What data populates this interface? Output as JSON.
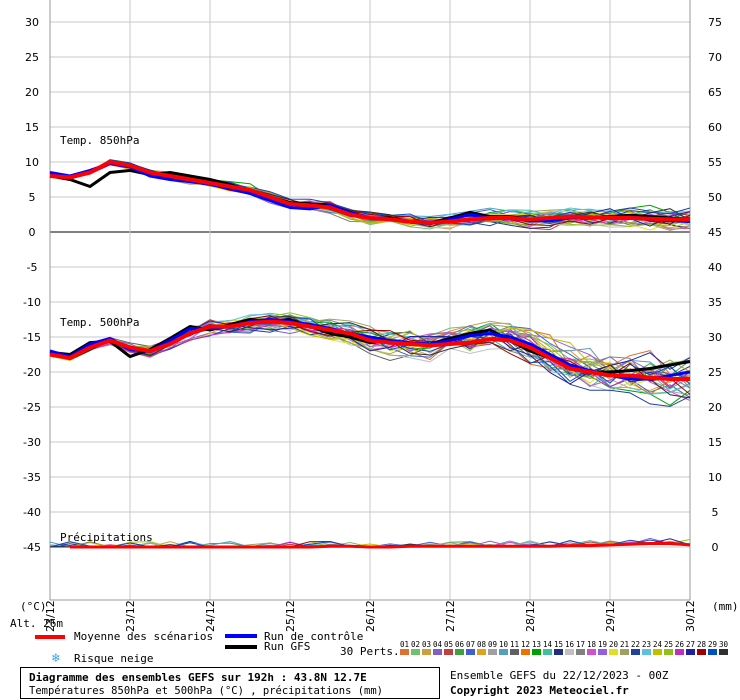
{
  "chart_data": {
    "type": "line",
    "title": "Diagramme des ensembles GEFS sur 192h : 43.8N 12.7E",
    "subtitle": "Températures 850hPa et 500hPa (°C) , précipitations (mm)",
    "x_ticks": [
      "23/12",
      "23/12",
      "24/12",
      "25/12",
      "26/12",
      "27/12",
      "28/12",
      "29/12",
      "30/12"
    ],
    "x": [
      0,
      6,
      12,
      18,
      24,
      30,
      36,
      42,
      48,
      54,
      60,
      66,
      72,
      78,
      84,
      90,
      96,
      102,
      108,
      114,
      120,
      126,
      132,
      138,
      144,
      150,
      156,
      162,
      168,
      174,
      180,
      186,
      192
    ],
    "left_axis": {
      "label": "(°C)",
      "ticks": [
        30,
        25,
        20,
        15,
        10,
        5,
        0,
        -5,
        -10,
        -15,
        -20,
        -25,
        -30,
        -35,
        -40,
        -45
      ],
      "range": [
        -45,
        30
      ]
    },
    "right_axis": {
      "label": "(mm)",
      "ticks": [
        75,
        70,
        65,
        60,
        55,
        50,
        45,
        40,
        35,
        30,
        25,
        20,
        15,
        10,
        5,
        0
      ],
      "range": [
        0,
        75
      ]
    },
    "annotations": {
      "t850": "Temp. 850hPa",
      "t500": "Temp. 500hPa",
      "precip": "Précipitations",
      "alt": "Alt. 26m"
    },
    "series": [
      {
        "name": "Moyenne des scénarios",
        "color": "#ff0000",
        "t850": [
          8,
          7.8,
          8.5,
          10,
          9.5,
          8.5,
          8,
          7.5,
          7,
          6.5,
          6,
          5,
          4,
          3.8,
          3.5,
          2.5,
          2,
          1.8,
          1.5,
          1.3,
          1.5,
          1.8,
          2,
          2,
          1.8,
          2,
          2.2,
          2.1,
          2,
          2,
          1.9,
          1.8,
          1.8
        ],
        "t500": [
          -17.5,
          -18,
          -16.5,
          -15.5,
          -16.5,
          -17,
          -16,
          -14.5,
          -13.5,
          -13.5,
          -13,
          -12.8,
          -13,
          -13.5,
          -14,
          -14.5,
          -15.5,
          -15.8,
          -16,
          -16.2,
          -16,
          -15.8,
          -15.3,
          -15.5,
          -16.5,
          -18,
          -19.5,
          -20,
          -20.5,
          -20.5,
          -20.8,
          -21,
          -21
        ],
        "precip": [
          0,
          0,
          0,
          0,
          0,
          0,
          0,
          0,
          0,
          0,
          0,
          0,
          0,
          0,
          0.1,
          0.1,
          0,
          0,
          0.1,
          0.1,
          0.1,
          0.1,
          0.1,
          0.1,
          0.1,
          0.1,
          0.2,
          0.2,
          0.3,
          0.4,
          0.5,
          0.5,
          0.3
        ]
      },
      {
        "name": "Run de contrôle",
        "color": "#0000ff",
        "t850": [
          8.5,
          8,
          8.8,
          9.8,
          9.3,
          8,
          7.5,
          7.2,
          6.8,
          6.2,
          5.5,
          4.5,
          3.5,
          3.3,
          3.8,
          2.8,
          2,
          1.8,
          1.4,
          1.2,
          1.8,
          2.5,
          2,
          2,
          1.6,
          1.6,
          2,
          2,
          2.2,
          2.2,
          1.8,
          1.6,
          1.5
        ],
        "t500": [
          -17,
          -17.8,
          -16,
          -15.2,
          -16.8,
          -17,
          -15.5,
          -13.8,
          -13.8,
          -13.5,
          -12.8,
          -12.5,
          -12.8,
          -13.2,
          -13.8,
          -14.5,
          -15,
          -15.5,
          -15.8,
          -16,
          -15.5,
          -14.8,
          -14.5,
          -15,
          -16,
          -17.5,
          -19,
          -19.8,
          -20.5,
          -21,
          -21,
          -20.5,
          -20
        ]
      },
      {
        "name": "Run GFS",
        "color": "#000000",
        "t850": [
          8,
          7.5,
          6.5,
          8.5,
          8.8,
          8.2,
          8.5,
          8,
          7.5,
          6.8,
          5.8,
          5,
          4.2,
          4,
          3.8,
          2.8,
          2,
          2,
          1.5,
          1.3,
          2,
          2.8,
          2.2,
          2.2,
          1.8,
          2,
          2.2,
          2,
          2.2,
          2.4,
          2.2,
          2,
          1.8
        ],
        "t500": [
          -17.2,
          -17.5,
          -15.8,
          -15.6,
          -17.8,
          -16.8,
          -15.2,
          -13.5,
          -14,
          -13.2,
          -12.5,
          -12.8,
          -12.5,
          -13.5,
          -14.5,
          -15,
          -15.8,
          -15.6,
          -15.9,
          -16,
          -15.2,
          -14.5,
          -14,
          -15.5,
          -17,
          -18,
          -19.5,
          -20,
          -20,
          -19.8,
          -19.5,
          -19,
          -18.5
        ]
      }
    ]
  },
  "legend": {
    "mean": "Moyenne des scénarios",
    "control": "Run de contrôle",
    "gfs": "Run GFS",
    "snow": "Risque neige",
    "perts": "30 Perts.",
    "pert_numbers": [
      "01",
      "02",
      "03",
      "04",
      "05",
      "06",
      "07",
      "08",
      "09",
      "10",
      "11",
      "12",
      "13",
      "14",
      "15",
      "16",
      "17",
      "18",
      "19",
      "20",
      "21",
      "22",
      "23",
      "24",
      "25",
      "26",
      "27",
      "28",
      "29",
      "30"
    ],
    "pert_colors": [
      "#e07030",
      "#70c070",
      "#c8a040",
      "#8060c0",
      "#c04040",
      "#40a040",
      "#4060d0",
      "#e0a020",
      "#a0a0a0",
      "#50a0c0",
      "#606060",
      "#f07000",
      "#00a000",
      "#40c0a0",
      "#203080",
      "#c0c0c0",
      "#808080",
      "#d050d0",
      "#9060e0",
      "#e0e020",
      "#a0a060",
      "#2040a0",
      "#60c0e0",
      "#c0c000",
      "#90c020",
      "#c030c0",
      "#2020a0",
      "#a00000",
      "#0050c0",
      "#303030"
    ]
  },
  "info": {
    "run": "Ensemble GEFS du 22/12/2023 - 00Z",
    "copyright": "Copyright 2023 Meteociel.fr"
  },
  "colors": {
    "grid": "#c8c8c8",
    "zero": "#808080"
  }
}
